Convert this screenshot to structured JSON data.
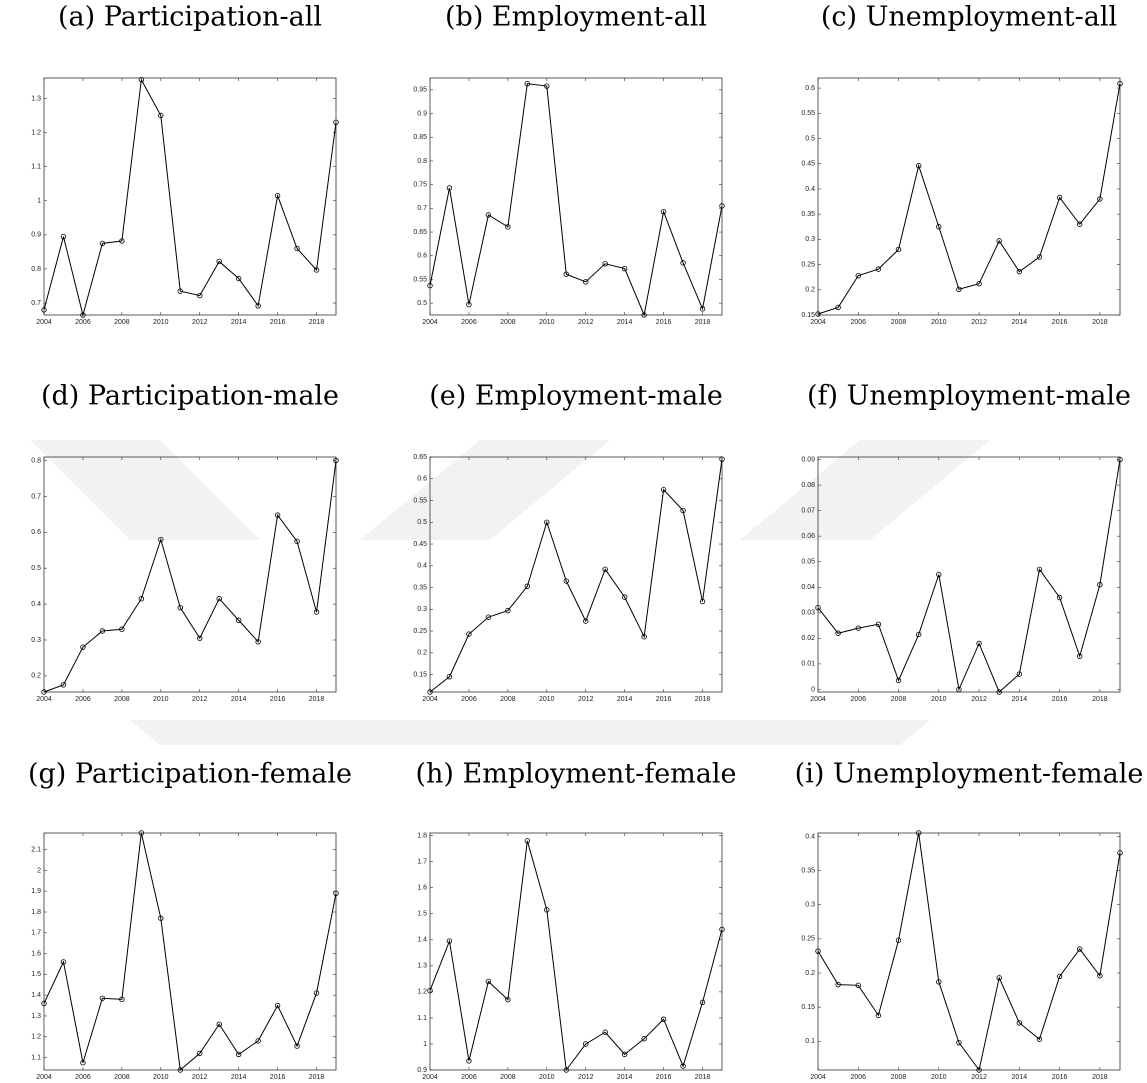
{
  "chart_data": [
    {
      "type": "line",
      "title": "(a) Participation-all",
      "color": "#000000",
      "x": [
        2004,
        2005,
        2006,
        2007,
        2008,
        2009,
        2010,
        2011,
        2012,
        2013,
        2014,
        2015,
        2016,
        2017,
        2018,
        2019
      ],
      "values": [
        0.68,
        0.895,
        0.665,
        0.875,
        0.882,
        1.355,
        1.25,
        0.735,
        0.722,
        0.822,
        0.772,
        0.692,
        1.015,
        0.86,
        0.797,
        1.23
      ],
      "xlim": [
        2004,
        2019
      ],
      "xticks": [
        2004,
        2006,
        2008,
        2010,
        2012,
        2014,
        2016,
        2018
      ],
      "ylim": [
        0.665,
        1.36
      ],
      "yticks": [
        0.7,
        0.8,
        0.9,
        1,
        1.1,
        1.2,
        1.3
      ]
    },
    {
      "type": "line",
      "title": "(b) Employment-all",
      "color": "#000000",
      "x": [
        2004,
        2005,
        2006,
        2007,
        2008,
        2009,
        2010,
        2011,
        2012,
        2013,
        2014,
        2015,
        2016,
        2017,
        2018,
        2019
      ],
      "values": [
        0.537,
        0.743,
        0.497,
        0.686,
        0.661,
        0.963,
        0.958,
        0.561,
        0.545,
        0.583,
        0.573,
        0.475,
        0.693,
        0.585,
        0.488,
        0.705
      ],
      "xlim": [
        2004,
        2019
      ],
      "xticks": [
        2004,
        2006,
        2008,
        2010,
        2012,
        2014,
        2016,
        2018
      ],
      "ylim": [
        0.475,
        0.975
      ],
      "yticks": [
        0.5,
        0.55,
        0.6,
        0.65,
        0.7,
        0.75,
        0.8,
        0.85,
        0.9,
        0.95
      ]
    },
    {
      "type": "line",
      "title": "(c) Unemployment-all",
      "color": "#000000",
      "x": [
        2004,
        2005,
        2006,
        2007,
        2008,
        2009,
        2010,
        2011,
        2012,
        2013,
        2014,
        2015,
        2016,
        2017,
        2018,
        2019
      ],
      "values": [
        0.152,
        0.165,
        0.228,
        0.241,
        0.28,
        0.446,
        0.325,
        0.201,
        0.212,
        0.297,
        0.236,
        0.265,
        0.383,
        0.33,
        0.38,
        0.609
      ],
      "xlim": [
        2004,
        2019
      ],
      "xticks": [
        2004,
        2006,
        2008,
        2010,
        2012,
        2014,
        2016,
        2018
      ],
      "ylim": [
        0.15,
        0.62
      ],
      "yticks": [
        0.15,
        0.2,
        0.25,
        0.3,
        0.35,
        0.4,
        0.45,
        0.5,
        0.55,
        0.6
      ]
    },
    {
      "type": "line",
      "title": "(d) Participation-male",
      "color": "#000000",
      "x": [
        2004,
        2005,
        2006,
        2007,
        2008,
        2009,
        2010,
        2011,
        2012,
        2013,
        2014,
        2015,
        2016,
        2017,
        2018,
        2019
      ],
      "values": [
        0.155,
        0.175,
        0.28,
        0.325,
        0.33,
        0.415,
        0.58,
        0.39,
        0.305,
        0.415,
        0.355,
        0.295,
        0.648,
        0.575,
        0.378,
        0.8
      ],
      "xlim": [
        2004,
        2019
      ],
      "xticks": [
        2004,
        2006,
        2008,
        2010,
        2012,
        2014,
        2016,
        2018
      ],
      "ylim": [
        0.155,
        0.81
      ],
      "yticks": [
        0.2,
        0.3,
        0.4,
        0.5,
        0.6,
        0.7,
        0.8
      ]
    },
    {
      "type": "line",
      "title": "(e) Employment-male",
      "color": "#000000",
      "x": [
        2004,
        2005,
        2006,
        2007,
        2008,
        2009,
        2010,
        2011,
        2012,
        2013,
        2014,
        2015,
        2016,
        2017,
        2018,
        2019
      ],
      "values": [
        0.11,
        0.145,
        0.243,
        0.282,
        0.297,
        0.353,
        0.5,
        0.365,
        0.273,
        0.392,
        0.328,
        0.237,
        0.575,
        0.527,
        0.318,
        0.645
      ],
      "xlim": [
        2004,
        2019
      ],
      "xticks": [
        2004,
        2006,
        2008,
        2010,
        2012,
        2014,
        2016,
        2018
      ],
      "ylim": [
        0.11,
        0.65
      ],
      "yticks": [
        0.15,
        0.2,
        0.25,
        0.3,
        0.35,
        0.4,
        0.45,
        0.5,
        0.55,
        0.6,
        0.65
      ]
    },
    {
      "type": "line",
      "title": "(f) Unemployment-male",
      "color": "#000000",
      "x": [
        2004,
        2005,
        2006,
        2007,
        2008,
        2009,
        2010,
        2011,
        2012,
        2013,
        2014,
        2015,
        2016,
        2017,
        2018,
        2019
      ],
      "values": [
        0.032,
        0.022,
        0.024,
        0.0255,
        0.0035,
        0.0215,
        0.045,
        0.0,
        0.018,
        -0.001,
        0.006,
        0.047,
        0.036,
        0.013,
        0.041,
        0.09
      ],
      "xlim": [
        2004,
        2019
      ],
      "xticks": [
        2004,
        2006,
        2008,
        2010,
        2012,
        2014,
        2016,
        2018
      ],
      "ylim": [
        -0.001,
        0.091
      ],
      "yticks": [
        0,
        0.01,
        0.02,
        0.03,
        0.04,
        0.05,
        0.06,
        0.07,
        0.08,
        0.09
      ]
    },
    {
      "type": "line",
      "title": "(g) Participation-female",
      "color": "#000000",
      "x": [
        2004,
        2005,
        2006,
        2007,
        2008,
        2009,
        2010,
        2011,
        2012,
        2013,
        2014,
        2015,
        2016,
        2017,
        2018,
        2019
      ],
      "values": [
        1.36,
        1.56,
        1.075,
        1.385,
        1.38,
        2.18,
        1.77,
        1.04,
        1.12,
        1.26,
        1.115,
        1.18,
        1.35,
        1.155,
        1.41,
        1.89
      ],
      "xlim": [
        2004,
        2019
      ],
      "xticks": [
        2004,
        2006,
        2008,
        2010,
        2012,
        2014,
        2016,
        2018
      ],
      "ylim": [
        1.04,
        2.18
      ],
      "yticks": [
        1.1,
        1.2,
        1.3,
        1.4,
        1.5,
        1.6,
        1.7,
        1.8,
        1.9,
        2,
        2.1
      ]
    },
    {
      "type": "line",
      "title": "(h) Employment-female",
      "color": "#000000",
      "x": [
        2004,
        2005,
        2006,
        2007,
        2008,
        2009,
        2010,
        2011,
        2012,
        2013,
        2014,
        2015,
        2016,
        2017,
        2018,
        2019
      ],
      "values": [
        1.205,
        1.395,
        0.935,
        1.24,
        1.17,
        1.78,
        1.515,
        0.9,
        1.0,
        1.045,
        0.96,
        1.02,
        1.095,
        0.915,
        1.16,
        1.44
      ],
      "xlim": [
        2004,
        2019
      ],
      "xticks": [
        2004,
        2006,
        2008,
        2010,
        2012,
        2014,
        2016,
        2018
      ],
      "ylim": [
        0.9,
        1.81
      ],
      "yticks": [
        0.9,
        1,
        1.1,
        1.2,
        1.3,
        1.4,
        1.5,
        1.6,
        1.7,
        1.8
      ]
    },
    {
      "type": "line",
      "title": "(i) Unemployment-female",
      "color": "#000000",
      "x": [
        2004,
        2005,
        2006,
        2007,
        2008,
        2009,
        2010,
        2011,
        2012,
        2013,
        2014,
        2015,
        2016,
        2017,
        2018,
        2019
      ],
      "values": [
        0.232,
        0.183,
        0.182,
        0.138,
        0.248,
        0.405,
        0.187,
        0.098,
        0.058,
        0.193,
        0.127,
        0.103,
        0.195,
        0.235,
        0.196,
        0.376
      ],
      "xlim": [
        2004,
        2019
      ],
      "xticks": [
        2004,
        2006,
        2008,
        2010,
        2012,
        2014,
        2016,
        2018
      ],
      "ylim": [
        0.058,
        0.405
      ],
      "yticks": [
        0.1,
        0.15,
        0.2,
        0.25,
        0.3,
        0.35,
        0.4
      ]
    }
  ]
}
